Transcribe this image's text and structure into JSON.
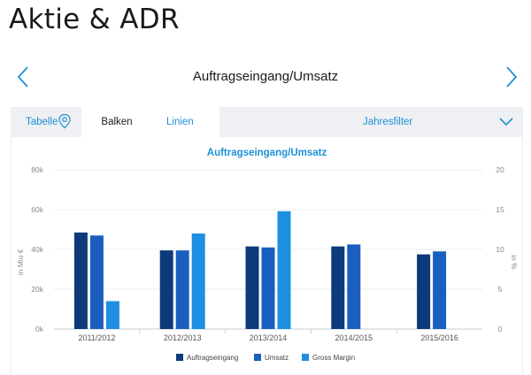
{
  "page": {
    "title": "Aktie & ADR"
  },
  "carousel": {
    "title": "Auftragseingang/Umsatz"
  },
  "tabs": [
    {
      "label": "Tabelle"
    },
    {
      "label": "Balken"
    },
    {
      "label": "Linien"
    }
  ],
  "filter": {
    "label": "Jahresfilter"
  },
  "icons": {
    "prev": "chevron-left-icon",
    "next": "chevron-right-icon",
    "pin": "location-pin-icon",
    "dropdown": "chevron-down-icon"
  },
  "colors": {
    "accent": "#1e90d6",
    "tab_bg": "#eef0f3"
  },
  "chart_data": {
    "type": "bar",
    "title": "Auftragseingang/Umsatz",
    "categories": [
      "2011/2012",
      "2012/2013",
      "2013/2014",
      "2014/2015",
      "2015/2016"
    ],
    "series": [
      {
        "name": "Auftragseingang",
        "axis": "left",
        "color": "#0d3a7a",
        "values": [
          48.5,
          39.5,
          41.5,
          41.5,
          37.5
        ]
      },
      {
        "name": "Umsatz",
        "axis": "left",
        "color": "#1a5fc0",
        "values": [
          47,
          39.5,
          41,
          42.5,
          39
        ]
      },
      {
        "name": "Gross Margin",
        "axis": "right",
        "color": "#1e8fe0",
        "values": [
          3.5,
          12,
          14.8,
          null,
          null
        ]
      }
    ],
    "ylabel": "in Mio €",
    "y2label": "in %",
    "ylim": [
      0,
      80
    ],
    "y2lim": [
      0,
      20
    ],
    "yticks": [
      "0k",
      "20k",
      "40k",
      "60k",
      "80k"
    ],
    "y2ticks": [
      "0",
      "5",
      "10",
      "15",
      "20"
    ],
    "grid": true,
    "legend": "bottom"
  }
}
